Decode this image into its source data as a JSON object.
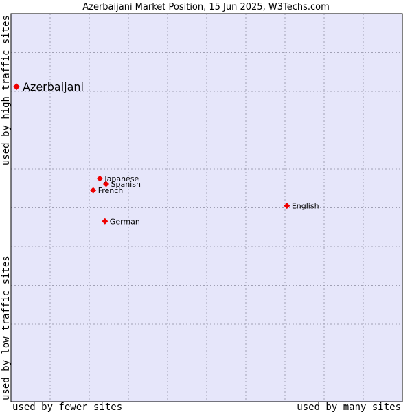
{
  "chart_data": {
    "type": "scatter",
    "title": "Azerbaijani Market Position, 15 Jun 2025, W3Techs.com",
    "xlabel_left": "used by fewer sites",
    "xlabel_right": "used by many sites",
    "ylabel_bottom": "used by low traffic sites",
    "ylabel_top": "used by high traffic sites",
    "xlim": [
      0,
      10
    ],
    "ylim": [
      0,
      10
    ],
    "grid": true,
    "colors": {
      "plot_bg": "#e6e6fa",
      "marker": "#ee0000",
      "grid": "#a0a0b4",
      "frame": "#000000"
    },
    "points": [
      {
        "label": "Azerbaijani",
        "x": 0.14,
        "y": 8.12,
        "highlight": true
      },
      {
        "label": "Japanese",
        "x": 2.27,
        "y": 5.75,
        "highlight": false
      },
      {
        "label": "Spanish",
        "x": 2.43,
        "y": 5.61,
        "highlight": false
      },
      {
        "label": "French",
        "x": 2.1,
        "y": 5.45,
        "highlight": false
      },
      {
        "label": "German",
        "x": 2.4,
        "y": 4.65,
        "highlight": false
      },
      {
        "label": "English",
        "x": 7.05,
        "y": 5.05,
        "highlight": false
      }
    ]
  }
}
